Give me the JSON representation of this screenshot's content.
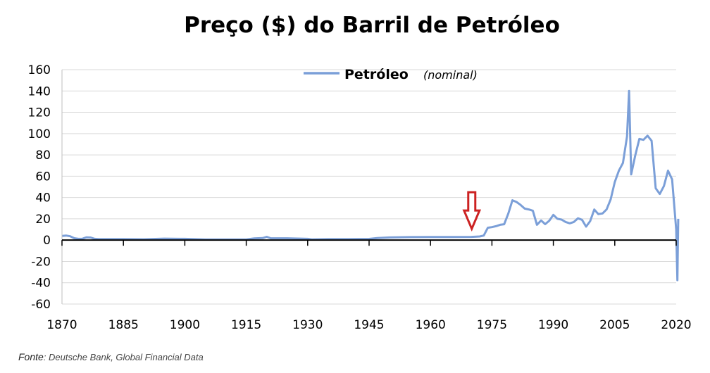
{
  "chart_data": {
    "type": "line",
    "title": "Preço ($) do Barril de Petróleo",
    "xlabel": "",
    "ylabel": "",
    "xlim": [
      1870,
      2020
    ],
    "ylim": [
      -60,
      160
    ],
    "x_ticks": [
      1870,
      1885,
      1900,
      1915,
      1930,
      1945,
      1960,
      1975,
      1990,
      2005,
      2020
    ],
    "y_ticks": [
      160,
      140,
      120,
      100,
      80,
      60,
      40,
      20,
      0,
      -20,
      -40,
      -60
    ],
    "grid": "horizontal",
    "legend": {
      "position": "top-center",
      "label": "Petróleo",
      "note": "(nominal)"
    },
    "annotation": {
      "type": "arrow",
      "color": "#cc2222",
      "x": 1973,
      "y": 4,
      "direction": "down"
    },
    "series": [
      {
        "name": "Petróleo",
        "color": "#7b9fd8",
        "points": [
          [
            1870,
            3.9
          ],
          [
            1871,
            4.3
          ],
          [
            1872,
            3.6
          ],
          [
            1873,
            1.8
          ],
          [
            1874,
            1.2
          ],
          [
            1875,
            1.3
          ],
          [
            1876,
            2.6
          ],
          [
            1877,
            2.4
          ],
          [
            1878,
            1.2
          ],
          [
            1879,
            0.9
          ],
          [
            1880,
            0.9
          ],
          [
            1885,
            0.9
          ],
          [
            1890,
            0.8
          ],
          [
            1895,
            1.4
          ],
          [
            1900,
            1.2
          ],
          [
            1905,
            0.6
          ],
          [
            1910,
            0.6
          ],
          [
            1915,
            0.6
          ],
          [
            1917,
            1.6
          ],
          [
            1919,
            1.9
          ],
          [
            1920,
            3.1
          ],
          [
            1921,
            1.7
          ],
          [
            1925,
            1.7
          ],
          [
            1930,
            1.2
          ],
          [
            1931,
            0.7
          ],
          [
            1935,
            1.0
          ],
          [
            1940,
            1.0
          ],
          [
            1945,
            1.1
          ],
          [
            1947,
            1.9
          ],
          [
            1950,
            2.5
          ],
          [
            1955,
            2.8
          ],
          [
            1960,
            2.9
          ],
          [
            1965,
            2.9
          ],
          [
            1970,
            3.0
          ],
          [
            1972,
            3.4
          ],
          [
            1973,
            4.3
          ],
          [
            1974,
            11.6
          ],
          [
            1975,
            12.2
          ],
          [
            1976,
            13.1
          ],
          [
            1977,
            14.4
          ],
          [
            1978,
            14.9
          ],
          [
            1979,
            25.0
          ],
          [
            1980,
            37.4
          ],
          [
            1981,
            35.8
          ],
          [
            1982,
            33.0
          ],
          [
            1983,
            29.6
          ],
          [
            1984,
            28.8
          ],
          [
            1985,
            27.6
          ],
          [
            1986,
            14.4
          ],
          [
            1987,
            18.4
          ],
          [
            1988,
            15.0
          ],
          [
            1989,
            18.2
          ],
          [
            1990,
            23.7
          ],
          [
            1991,
            20.0
          ],
          [
            1992,
            19.3
          ],
          [
            1993,
            17.0
          ],
          [
            1994,
            15.8
          ],
          [
            1995,
            17.0
          ],
          [
            1996,
            20.5
          ],
          [
            1997,
            19.1
          ],
          [
            1998,
            12.7
          ],
          [
            1999,
            17.9
          ],
          [
            2000,
            28.7
          ],
          [
            2001,
            24.4
          ],
          [
            2002,
            25.0
          ],
          [
            2003,
            28.8
          ],
          [
            2004,
            38.3
          ],
          [
            2005,
            54.5
          ],
          [
            2006,
            65.1
          ],
          [
            2007,
            72.4
          ],
          [
            2008,
            97.3
          ],
          [
            2008.5,
            140.0
          ],
          [
            2009,
            61.7
          ],
          [
            2010,
            79.5
          ],
          [
            2011,
            95.0
          ],
          [
            2012,
            94.1
          ],
          [
            2013,
            98.0
          ],
          [
            2014,
            93.2
          ],
          [
            2015,
            48.7
          ],
          [
            2016,
            43.3
          ],
          [
            2017,
            50.8
          ],
          [
            2018,
            65.2
          ],
          [
            2019,
            57.0
          ],
          [
            2020,
            10.0
          ],
          [
            2020.3,
            -37.6
          ],
          [
            2020.5,
            20.0
          ]
        ]
      }
    ]
  },
  "source": {
    "label": "Fonte",
    "text": ": Deutsche Bank, Global Financial Data"
  }
}
